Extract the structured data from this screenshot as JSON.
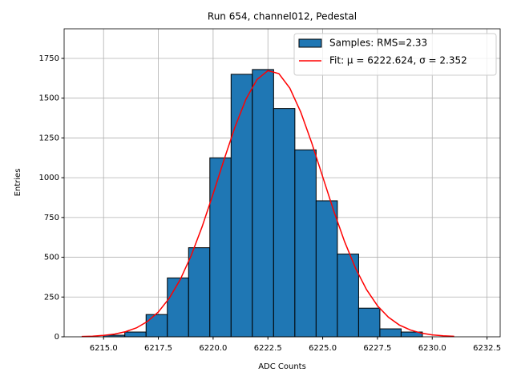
{
  "chart_data": {
    "type": "histogram",
    "title": "Run 654, channel012, Pedestal",
    "xlabel": "ADC Counts",
    "ylabel": "Entries",
    "bins": [
      6215,
      6215.97,
      6216.94,
      6217.91,
      6218.88,
      6219.85,
      6220.82,
      6221.79,
      6222.76,
      6223.73,
      6224.7,
      6225.67,
      6226.64,
      6227.61,
      6228.58,
      6229.55
    ],
    "series": [
      {
        "name": "Samples: RMS=2.33",
        "type": "histogram",
        "color": "#1f77b4",
        "edgecolor": "#000000",
        "values": [
          10,
          30,
          140,
          370,
          560,
          1125,
          1650,
          1680,
          1435,
          1175,
          855,
          520,
          180,
          50,
          30
        ]
      },
      {
        "name": "Fit: μ = 6222.624, σ = 2.352",
        "type": "line",
        "color": "#ff0000",
        "x": [
          6214,
          6214.5,
          6215,
          6215.5,
          6216,
          6216.5,
          6217,
          6217.5,
          6218,
          6218.5,
          6219,
          6219.5,
          6220,
          6220.5,
          6221,
          6221.5,
          6222,
          6222.5,
          6223,
          6223.5,
          6224,
          6224.5,
          6225,
          6225.5,
          6226,
          6226.5,
          6227,
          6227.5,
          6228,
          6228.5,
          6229,
          6229.5,
          6230,
          6230.5,
          6231
        ],
        "values": [
          2,
          4,
          9,
          17,
          32,
          56,
          96,
          156,
          243,
          360,
          511,
          693,
          899,
          1114,
          1320,
          1494,
          1617,
          1673,
          1654,
          1563,
          1412,
          1219,
          1006,
          793,
          598,
          431,
          297,
          195,
          123,
          74,
          43,
          23,
          12,
          6,
          3
        ]
      }
    ],
    "xlim": [
      6213.2,
      6233.1
    ],
    "xticks": [
      {
        "value": 6215,
        "label": "6215.0"
      },
      {
        "value": 6217.5,
        "label": "6217.5"
      },
      {
        "value": 6220,
        "label": "6220.0"
      },
      {
        "value": 6222.5,
        "label": "6222.5"
      },
      {
        "value": 6225,
        "label": "6225.0"
      },
      {
        "value": 6227.5,
        "label": "6227.5"
      },
      {
        "value": 6230,
        "label": "6230.0"
      },
      {
        "value": 6232.5,
        "label": "6232.5"
      }
    ],
    "ylim": [
      0,
      1936
    ],
    "yticks": [
      0,
      250,
      500,
      750,
      1000,
      1250,
      1500,
      1750
    ],
    "grid": true,
    "legend": "upper right"
  }
}
